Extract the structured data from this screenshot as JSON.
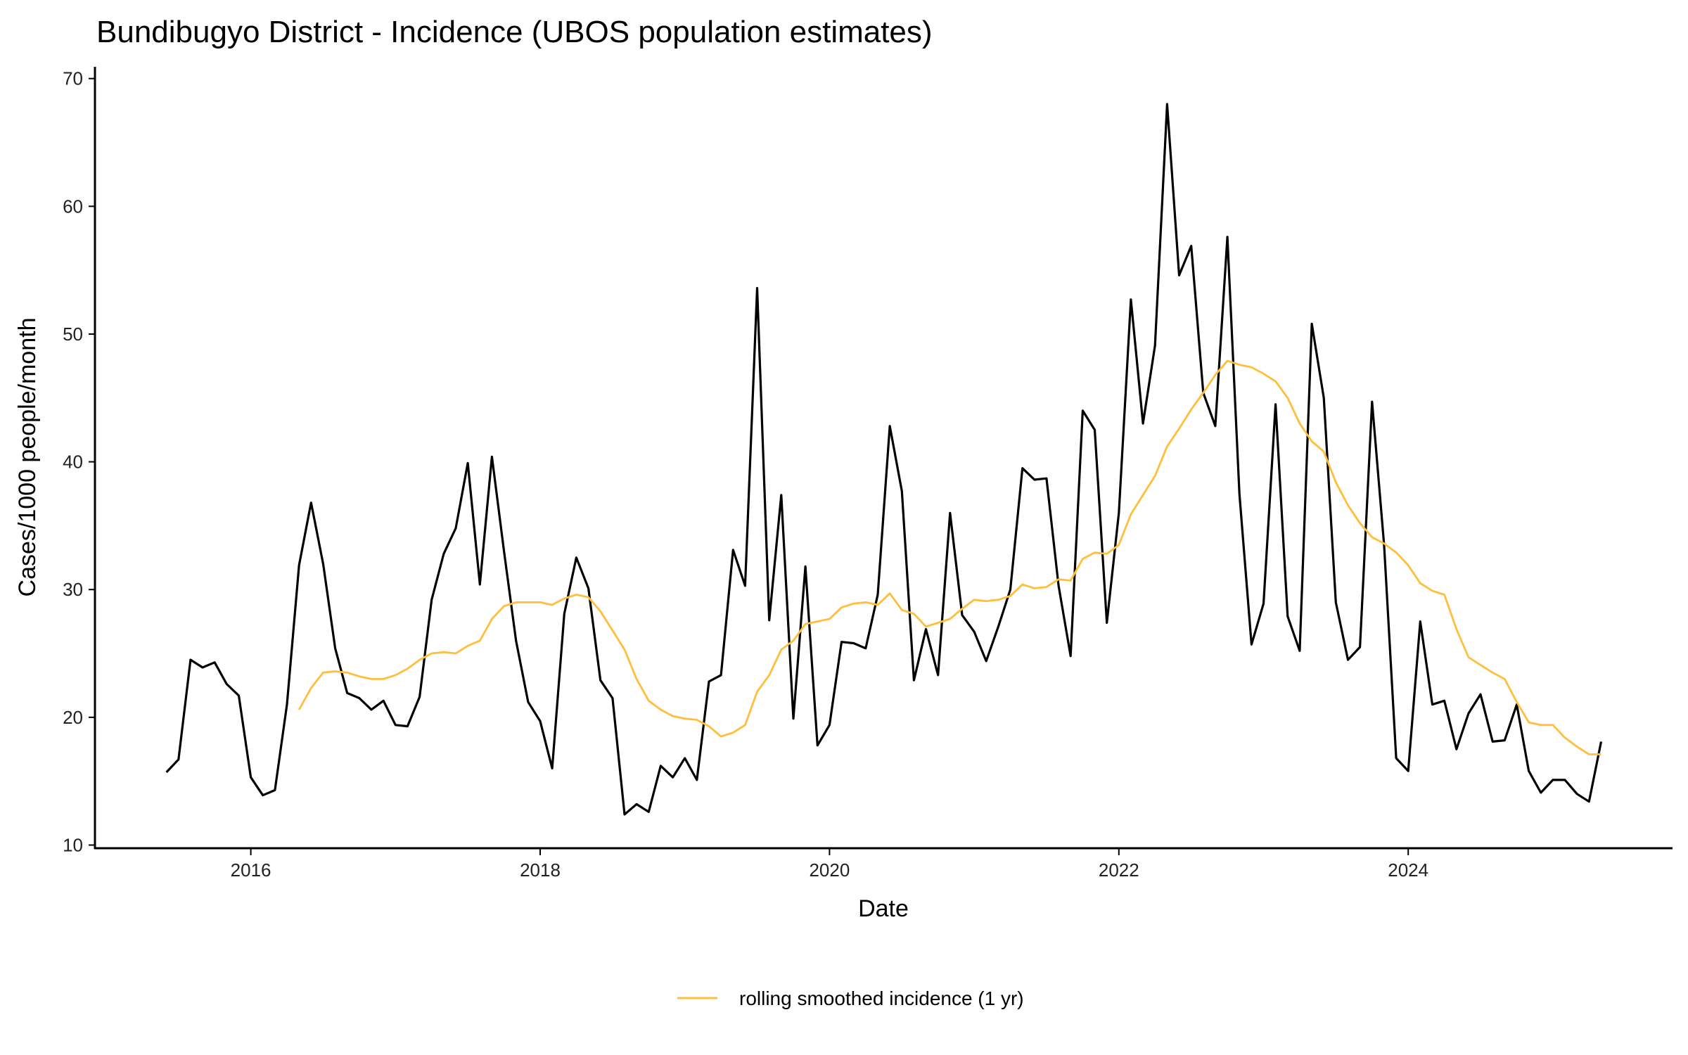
{
  "chart_data": {
    "type": "line",
    "title": "Bundibugyo District - Incidence (UBOS population estimates)",
    "xlabel": "Date",
    "ylabel": "Cases/1000 people/month",
    "ylim": [
      10,
      70
    ],
    "xlim": [
      2015.1,
      2025.85
    ],
    "yticks": [
      "10",
      "20",
      "30",
      "40",
      "50",
      "60",
      "70"
    ],
    "xticks": [
      "2016",
      "2018",
      "2020",
      "2022",
      "2024"
    ],
    "grid": false,
    "legend_position": "bottom",
    "series": [
      {
        "name": "incidence",
        "color": "#000000",
        "start": "2015-06",
        "frequency": "monthly",
        "values": [
          15.7,
          16.7,
          24.5,
          23.9,
          24.3,
          22.6,
          21.7,
          15.3,
          13.9,
          14.3,
          21.0,
          31.9,
          36.8,
          32.0,
          25.4,
          21.9,
          21.5,
          20.6,
          21.3,
          19.4,
          19.3,
          21.6,
          29.2,
          32.8,
          34.8,
          39.9,
          30.4,
          40.4,
          33.0,
          26.0,
          21.2,
          19.7,
          16.0,
          28.1,
          32.5,
          30.1,
          22.9,
          21.5,
          12.4,
          13.2,
          12.6,
          16.2,
          15.3,
          16.8,
          15.1,
          22.8,
          23.3,
          33.1,
          30.3,
          53.6,
          27.6,
          37.4,
          19.9,
          31.8,
          17.8,
          19.4,
          25.9,
          25.8,
          25.4,
          29.6,
          42.8,
          37.7,
          22.9,
          26.9,
          23.3,
          36.0,
          28.0,
          26.7,
          24.4,
          27.1,
          30.0,
          39.5,
          38.6,
          38.7,
          30.3,
          24.8,
          44.0,
          42.5,
          27.4,
          36.0,
          52.7,
          43.0,
          49.1,
          68.0,
          54.6,
          56.9,
          45.4,
          42.8,
          57.6,
          37.5,
          25.7,
          28.9,
          44.5,
          27.9,
          25.2,
          50.8,
          45.0,
          29.0,
          24.5,
          25.5,
          44.7,
          33.5,
          16.8,
          15.8,
          27.5,
          21.0,
          21.3,
          17.5,
          20.3,
          21.8,
          18.1,
          18.2,
          21.0,
          15.8,
          14.1,
          15.1,
          15.1,
          14.0,
          13.4,
          18.1
        ]
      },
      {
        "name": "rolling smoothed incidence (1 yr)",
        "color": "#FFBE3C",
        "start": "2016-05",
        "frequency": "monthly",
        "values": [
          20.6,
          22.3,
          23.5,
          23.6,
          23.5,
          23.2,
          23.0,
          23.0,
          23.3,
          23.8,
          24.5,
          25.0,
          25.1,
          25.0,
          25.6,
          26.0,
          27.7,
          28.7,
          29.0,
          29.0,
          29.0,
          28.8,
          29.3,
          29.6,
          29.4,
          28.3,
          26.8,
          25.3,
          23.0,
          21.3,
          20.6,
          20.1,
          19.9,
          19.8,
          19.3,
          18.5,
          18.8,
          19.4,
          22.0,
          23.3,
          25.3,
          26.0,
          27.3,
          27.5,
          27.7,
          28.6,
          28.9,
          29.0,
          28.8,
          29.7,
          28.4,
          28.1,
          27.1,
          27.4,
          27.7,
          28.5,
          29.2,
          29.1,
          29.2,
          29.5,
          30.4,
          30.1,
          30.2,
          30.8,
          30.7,
          32.4,
          32.9,
          32.8,
          33.5,
          35.9,
          37.4,
          38.9,
          41.2,
          42.6,
          44.1,
          45.4,
          46.8,
          47.9,
          47.6,
          47.4,
          46.9,
          46.3,
          45.0,
          43.0,
          41.6,
          40.8,
          38.4,
          36.6,
          35.2,
          34.1,
          33.6,
          32.9,
          31.9,
          30.5,
          29.9,
          29.6,
          26.9,
          24.7,
          24.1,
          23.5,
          23.0,
          21.2,
          19.6,
          19.4,
          19.4,
          18.4,
          17.7,
          17.1,
          17.1
        ]
      }
    ],
    "legend": [
      "rolling smoothed incidence (1 yr)"
    ]
  }
}
